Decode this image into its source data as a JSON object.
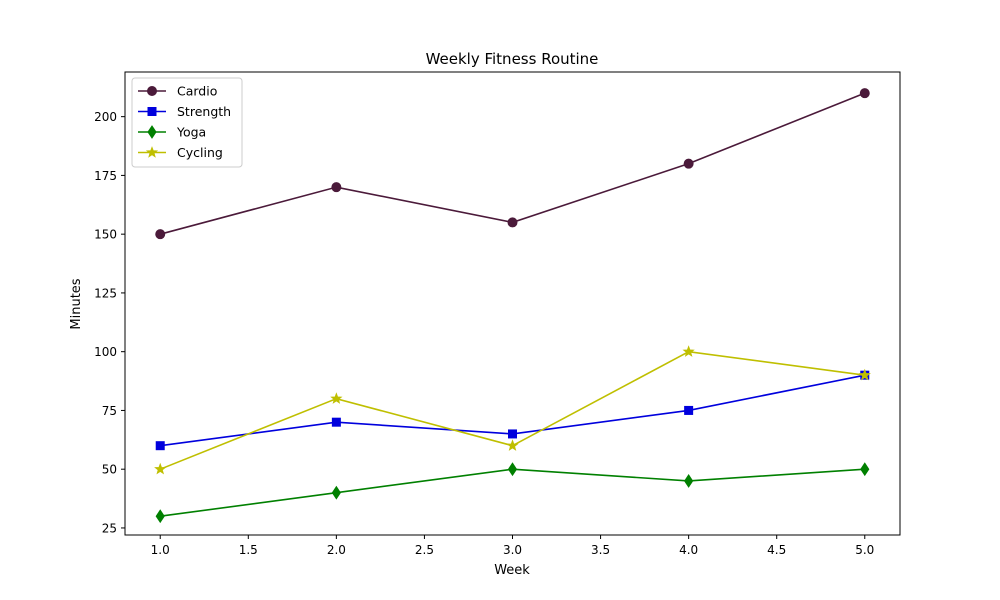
{
  "chart_data": {
    "type": "line",
    "title": "Weekly Fitness Routine",
    "xlabel": "Week",
    "ylabel": "Minutes",
    "x": [
      1,
      2,
      3,
      4,
      5
    ],
    "xlim": [
      0.8,
      5.2
    ],
    "ylim": [
      22,
      219
    ],
    "xticks": [
      1.0,
      1.5,
      2.0,
      2.5,
      3.0,
      3.5,
      4.0,
      4.5,
      5.0
    ],
    "xtick_labels": [
      "1.0",
      "1.5",
      "2.0",
      "2.5",
      "3.0",
      "3.5",
      "4.0",
      "4.5",
      "5.0"
    ],
    "yticks": [
      25,
      50,
      75,
      100,
      125,
      150,
      175,
      200
    ],
    "ytick_labels": [
      "25",
      "50",
      "75",
      "100",
      "125",
      "150",
      "175",
      "200"
    ],
    "grid": false,
    "legend_position": "top-left",
    "series": [
      {
        "name": "Cardio",
        "values": [
          150,
          170,
          155,
          180,
          210
        ],
        "color": "#4b1a3a",
        "marker": "circle"
      },
      {
        "name": "Strength",
        "values": [
          60,
          70,
          65,
          75,
          90
        ],
        "color": "#0000dd",
        "marker": "square"
      },
      {
        "name": "Yoga",
        "values": [
          30,
          40,
          50,
          45,
          50
        ],
        "color": "#008000",
        "marker": "diamond"
      },
      {
        "name": "Cycling",
        "values": [
          50,
          80,
          60,
          100,
          90
        ],
        "color": "#bfbf00",
        "marker": "star"
      }
    ]
  }
}
